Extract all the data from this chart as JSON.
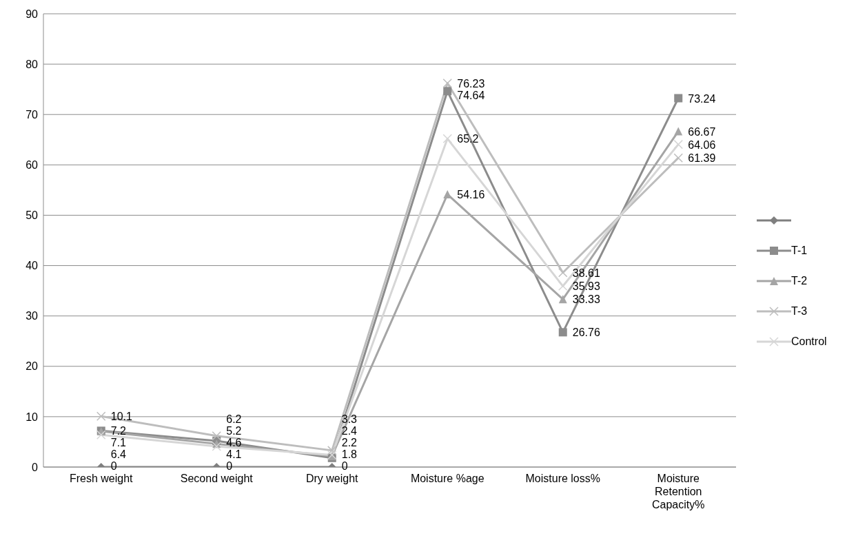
{
  "chart_data": {
    "type": "line",
    "categories": [
      "Fresh weight",
      "Second weight",
      "Dry weight",
      "Moisture %age",
      "Moisture loss%",
      "Moisture Retention Capacity%"
    ],
    "series": [
      {
        "color": "#7f7f7f",
        "marker": "diamond",
        "values": [
          0,
          0,
          0,
          null,
          null,
          null
        ]
      },
      {
        "name": "T-1",
        "color": "#8c8c8c",
        "marker": "square",
        "values": [
          7.2,
          5.2,
          1.8,
          74.64,
          26.76,
          73.24
        ]
      },
      {
        "name": "T-2",
        "color": "#a5a5a5",
        "marker": "triangle",
        "values": [
          7.1,
          4.6,
          2.2,
          54.16,
          33.33,
          66.67
        ]
      },
      {
        "name": "T-3",
        "color": "#bdbdbd",
        "marker": "cross",
        "values": [
          10.1,
          6.2,
          3.3,
          76.23,
          38.61,
          61.39
        ]
      },
      {
        "name": "Control",
        "color": "#d6d6d6",
        "marker": "cross",
        "values": [
          6.4,
          4.1,
          2.4,
          65.2,
          35.93,
          64.06
        ]
      }
    ],
    "ylim": [
      0,
      90
    ],
    "yticks": [
      0,
      10,
      20,
      30,
      40,
      50,
      60,
      70,
      80,
      90
    ],
    "grid": "y",
    "legend": "right",
    "data_labels": true
  }
}
